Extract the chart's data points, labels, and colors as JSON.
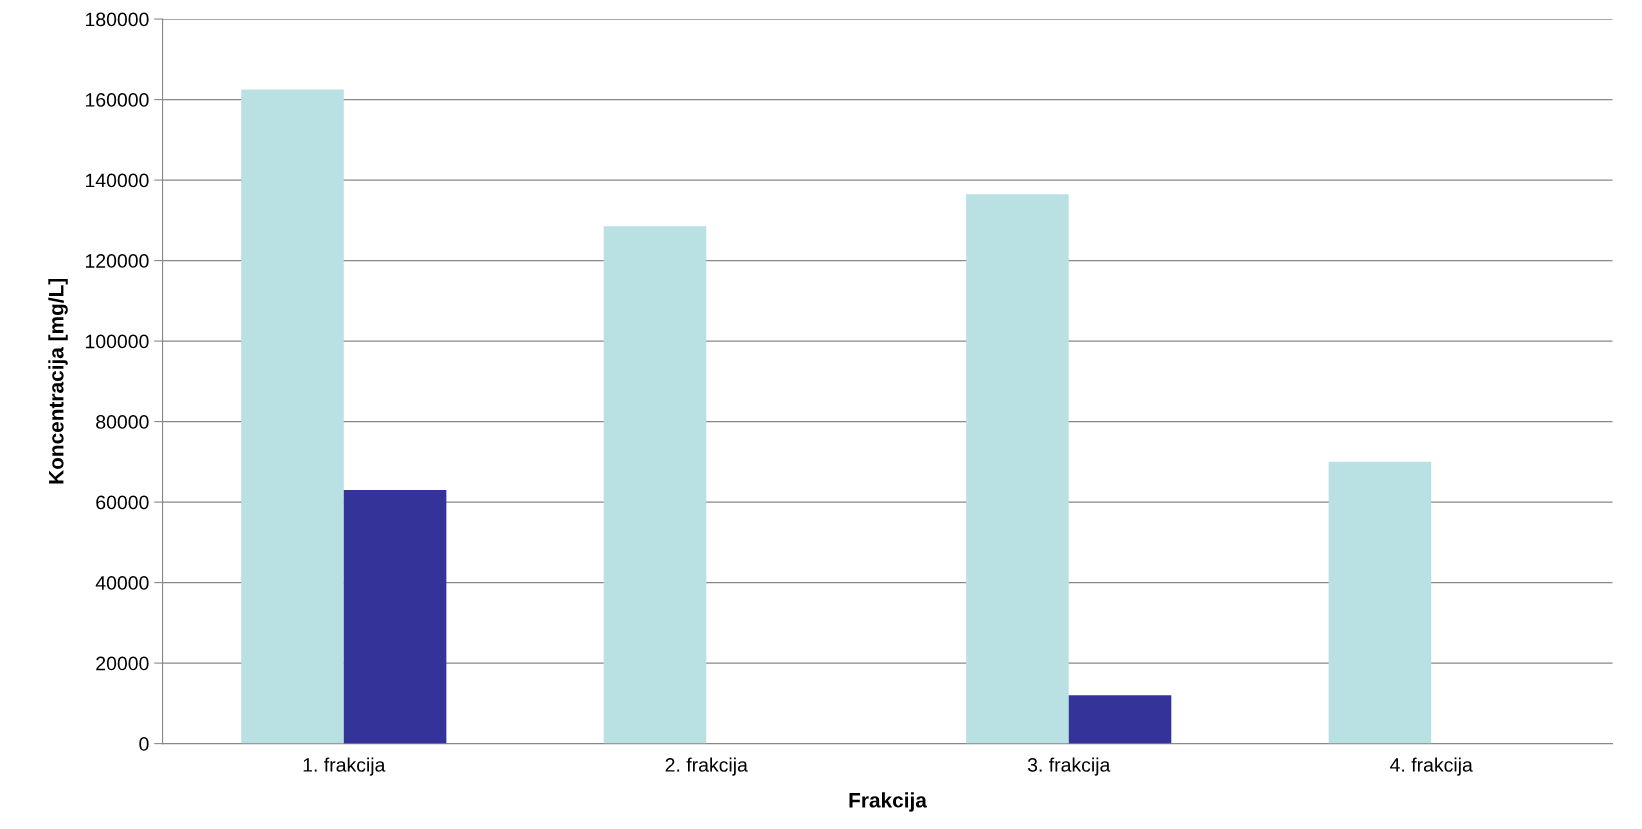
{
  "chart_data": {
    "type": "bar",
    "xlabel": "Frakcija",
    "ylabel": "Koncentracija [mg/L]",
    "categories": [
      "1. frakcija",
      "2. frakcija",
      "3. frakcija",
      "4. frakcija"
    ],
    "series": [
      {
        "color": "#b9e0e3",
        "values": [
          162500,
          128500,
          136500,
          70000
        ]
      },
      {
        "color": "#333399",
        "values": [
          63000,
          0,
          12000,
          0
        ]
      }
    ],
    "ylim": [
      0,
      180000
    ],
    "yticks": [
      0,
      20000,
      40000,
      60000,
      80000,
      100000,
      120000,
      140000,
      160000,
      180000
    ],
    "grid": "y",
    "legend": false
  }
}
